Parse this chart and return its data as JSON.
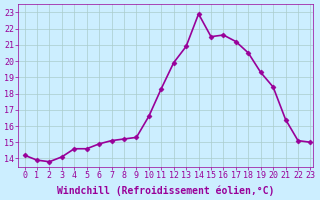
{
  "x": [
    0,
    1,
    2,
    3,
    4,
    5,
    6,
    7,
    8,
    9,
    10,
    11,
    12,
    13,
    14,
    15,
    16,
    17,
    18,
    19,
    20,
    21,
    22,
    23
  ],
  "y": [
    14.2,
    13.9,
    13.8,
    14.1,
    14.6,
    14.6,
    14.9,
    15.1,
    15.2,
    15.3,
    16.6,
    18.3,
    19.9,
    20.9,
    22.9,
    21.5,
    21.6,
    21.2,
    20.5,
    19.3,
    18.4,
    16.4,
    15.1,
    15.0
  ],
  "line_color": "#990099",
  "marker": "D",
  "marker_size": 2.5,
  "bg_color": "#cceeff",
  "grid_color": "#aacccc",
  "xlabel": "Windchill (Refroidissement éolien,°C)",
  "ylabel": "",
  "xlim": [
    -0.5,
    23.2
  ],
  "ylim": [
    13.5,
    23.5
  ],
  "yticks": [
    14,
    15,
    16,
    17,
    18,
    19,
    20,
    21,
    22,
    23
  ],
  "xticks": [
    0,
    1,
    2,
    3,
    4,
    5,
    6,
    7,
    8,
    9,
    10,
    11,
    12,
    13,
    14,
    15,
    16,
    17,
    18,
    19,
    20,
    21,
    22,
    23
  ],
  "tick_color": "#990099",
  "tick_fontsize": 6,
  "xlabel_fontsize": 7,
  "line_width": 1.2
}
